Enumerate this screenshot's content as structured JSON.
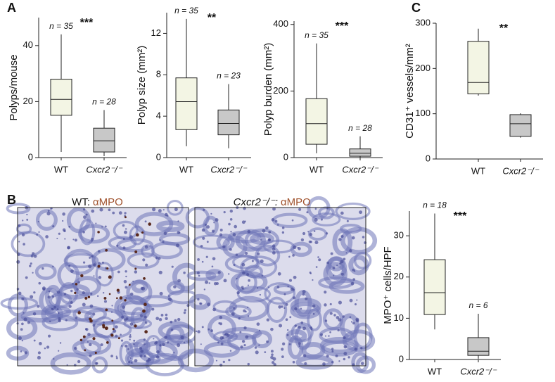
{
  "chart_data": [
    {
      "type": "box",
      "panel_label": "A",
      "ylabel": "Polyps/mouse",
      "categories": [
        "WT",
        "Cxcr2⁻/⁻"
      ],
      "min": [
        2,
        0.5
      ],
      "q1": [
        15.1,
        2
      ],
      "median": [
        20.8,
        6
      ],
      "q3": [
        28,
        10.5
      ],
      "max": [
        44,
        17
      ],
      "colors": [
        "#f3f5e4",
        "#c8c8c8"
      ],
      "n_labels": [
        "n = 35",
        "n = 28"
      ],
      "significance": "***",
      "ylim": [
        0,
        50
      ],
      "yticks": [
        0,
        20,
        40
      ]
    },
    {
      "type": "box",
      "ylabel": "Polyp size (mm²)",
      "categories": [
        "WT",
        "Cxcr2⁻/⁻"
      ],
      "min": [
        1.1,
        0.9
      ],
      "q1": [
        2.7,
        2.2
      ],
      "median": [
        5.4,
        3.3
      ],
      "q3": [
        7.7,
        4.6
      ],
      "max": [
        13.4,
        7.1
      ],
      "colors": [
        "#f3f5e4",
        "#c8c8c8"
      ],
      "n_labels": [
        "n = 35",
        "n = 23"
      ],
      "significance": "**",
      "ylim": [
        0,
        14
      ],
      "yticks": [
        0,
        4,
        8,
        12
      ]
    },
    {
      "type": "box",
      "ylabel": "Polyp burden (mm²)",
      "categories": [
        "WT",
        "Cxcr2⁻/⁻"
      ],
      "min": [
        13,
        0
      ],
      "q1": [
        40,
        4
      ],
      "median": [
        102,
        13
      ],
      "q3": [
        177,
        26
      ],
      "max": [
        343,
        64
      ],
      "colors": [
        "#f3f5e4",
        "#c8c8c8"
      ],
      "n_labels": [
        "n = 35",
        "n = 28"
      ],
      "significance": "***",
      "ylim": [
        0,
        410
      ],
      "yticks": [
        0,
        200,
        400
      ]
    },
    {
      "type": "box",
      "panel_label": "C",
      "ylabel": "CD31⁺ vessels/mm²",
      "categories": [
        "WT",
        "Cxcr2⁻/⁻"
      ],
      "min": [
        140,
        47
      ],
      "q1": [
        144,
        50
      ],
      "median": [
        169,
        78
      ],
      "q3": [
        260,
        98
      ],
      "max": [
        288,
        101
      ],
      "colors": [
        "#f3f5e4",
        "#c8c8c8"
      ],
      "significance": "**",
      "ylim": [
        0,
        300
      ],
      "yticks": [
        0,
        100,
        200,
        300
      ]
    },
    {
      "type": "box",
      "panel_label": "B",
      "ylabel": "MPO⁺ cells/HPF",
      "categories": [
        "WT",
        "Cxcr2⁻/⁻"
      ],
      "min": [
        7.3,
        0.2
      ],
      "q1": [
        10.9,
        1
      ],
      "median": [
        16.2,
        2
      ],
      "q3": [
        24.2,
        5.3
      ],
      "max": [
        35.4,
        11.1
      ],
      "colors": [
        "#f3f5e4",
        "#c8c8c8"
      ],
      "n_labels": [
        "n = 18",
        "n = 6"
      ],
      "significance": "***",
      "ylim": [
        0,
        36
      ],
      "yticks": [
        0,
        10,
        20,
        30
      ]
    }
  ],
  "images": [
    {
      "label": "WT:",
      "stain": "αMPO"
    },
    {
      "label": "Cxcr2⁻/⁻:",
      "stain": "αMPO"
    }
  ]
}
